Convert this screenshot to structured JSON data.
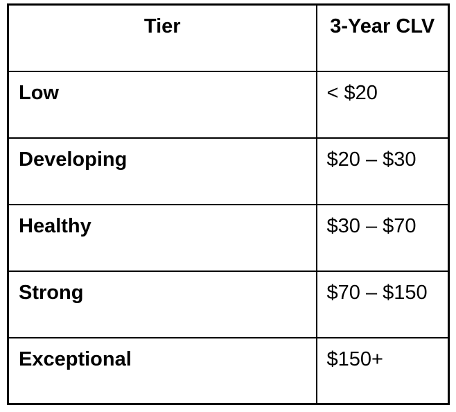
{
  "chart_data": {
    "type": "table",
    "columns": [
      "Tier",
      "3-Year CLV"
    ],
    "rows": [
      [
        "Low",
        "< $20"
      ],
      [
        "Developing",
        "$20 – $30"
      ],
      [
        "Healthy",
        "$30 – $70"
      ],
      [
        "Strong",
        "$70 – $150"
      ],
      [
        "Exceptional",
        "$150+"
      ]
    ]
  },
  "styles": {
    "border_color": "#000000",
    "background_color": "#ffffff",
    "text_color": "#000000"
  }
}
